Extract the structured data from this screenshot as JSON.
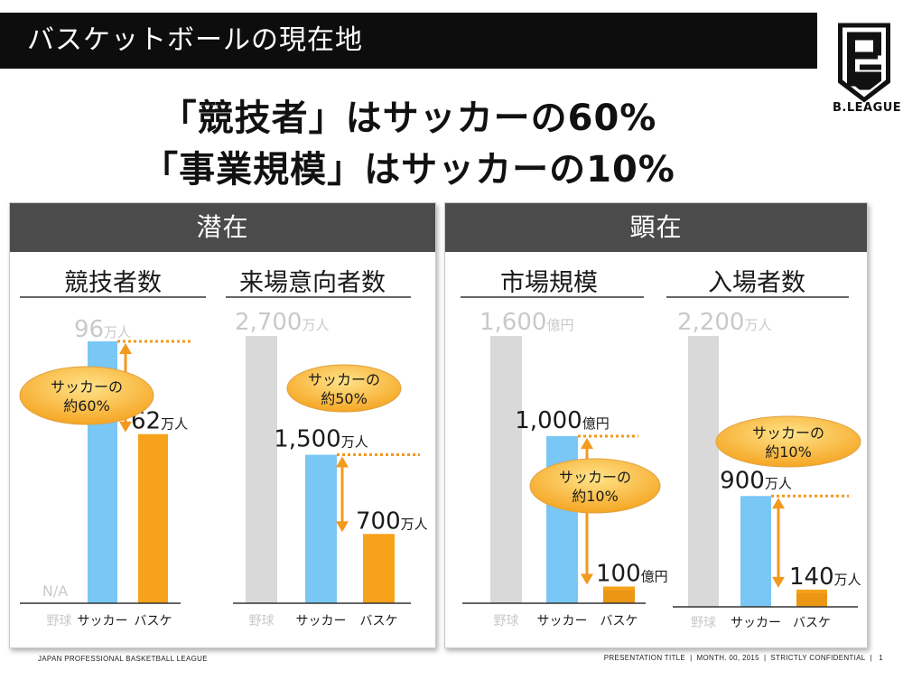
{
  "slide_title": "バスケットボールの現在地",
  "headline_line1": "「競技者」はサッカーの60%",
  "headline_line2": "「事業規模」はサッカーの10%",
  "logo_text": "B.LEAGUE",
  "panel_left_title": "潜在",
  "panel_right_title": "顕在",
  "footer_left": "JAPAN PROFESSIONAL BASKETBALL LEAGUE",
  "footer_right": "PRESENTATION TITLE  |  MONTH. 00, 2015  |  STRICTLY CONFIDENTIAL  |",
  "page_number": "1",
  "colors": {
    "baseball": "#d9d9d9",
    "soccer": "#79c7f5",
    "basketball": "#f7a21b",
    "arrow": "#f29a1d",
    "bubble_light": "#ffe38a",
    "bubble_dark": "#f5a623",
    "faded_label": "#c9c9c9"
  },
  "chart_data": [
    {
      "type": "bar",
      "title": "競技者数",
      "categories": [
        "野球",
        "サッカー",
        "バスケ"
      ],
      "values": [
        null,
        96,
        62
      ],
      "value_labels": [
        "N/A",
        "96",
        "62"
      ],
      "unit": "万人",
      "ratio_label_line1": "サッカーの",
      "ratio_label_line2": "約60%"
    },
    {
      "type": "bar",
      "title": "来場意向者数",
      "categories": [
        "野球",
        "サッカー",
        "バスケ"
      ],
      "values": [
        2700,
        1500,
        700
      ],
      "value_labels": [
        "2,700",
        "1,500",
        "700"
      ],
      "unit": "万人",
      "ratio_label_line1": "サッカーの",
      "ratio_label_line2": "約50%"
    },
    {
      "type": "bar",
      "title": "市場規模",
      "categories": [
        "野球",
        "サッカー",
        "バスケ"
      ],
      "values": [
        1600,
        1000,
        100
      ],
      "value_labels": [
        "1,600",
        "1,000",
        "100"
      ],
      "unit": "億円",
      "ratio_label_line1": "サッカーの",
      "ratio_label_line2": "約10%"
    },
    {
      "type": "bar",
      "title": "入場者数",
      "categories": [
        "野球",
        "サッカー",
        "バスケ"
      ],
      "values": [
        2200,
        900,
        140
      ],
      "value_labels": [
        "2,200",
        "900",
        "140"
      ],
      "unit": "万人",
      "ratio_label_line1": "サッカーの",
      "ratio_label_line2": "約10%"
    }
  ]
}
